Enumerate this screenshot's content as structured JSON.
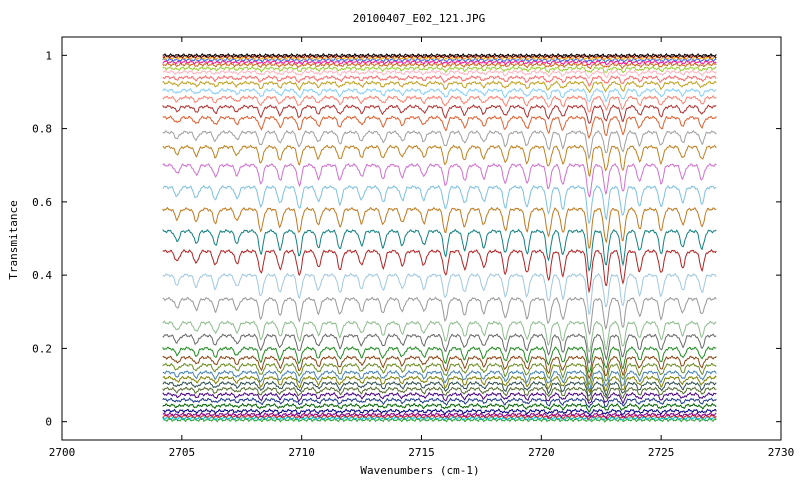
{
  "chart_data": {
    "type": "line",
    "title": "20100407_E02_121.JPG",
    "xlabel": "Wavenumbers (cm-1)",
    "ylabel": "Transmitance",
    "xlim": [
      2700,
      2730
    ],
    "ylim": [
      -0.05,
      1.05
    ],
    "data_x_range": [
      2704.2,
      2727.3
    ],
    "x_ticks": [
      "2700",
      "2705",
      "2710",
      "2715",
      "2720",
      "2725",
      "2730"
    ],
    "x_tick_values": [
      2700,
      2705,
      2710,
      2715,
      2720,
      2725,
      2730
    ],
    "y_ticks": [
      "0",
      "0.2",
      "0.4",
      "0.6",
      "0.8",
      "1"
    ],
    "y_tick_values": [
      0,
      0.2,
      0.4,
      0.6,
      0.8,
      1.0
    ],
    "grid": false,
    "legend": "none",
    "series_baselines": [
      0.005,
      0.01,
      0.015,
      0.02,
      0.03,
      0.045,
      0.06,
      0.075,
      0.09,
      0.105,
      0.12,
      0.135,
      0.155,
      0.175,
      0.2,
      0.235,
      0.27,
      0.335,
      0.4,
      0.465,
      0.52,
      0.58,
      0.64,
      0.7,
      0.75,
      0.79,
      0.83,
      0.86,
      0.885,
      0.905,
      0.925,
      0.94,
      0.955,
      0.965,
      0.975,
      0.982,
      0.988,
      0.993,
      0.997,
      1.0
    ],
    "absorption_lines": [
      {
        "x": 2704.8,
        "depth": 0.25
      },
      {
        "x": 2705.6,
        "depth": 0.3
      },
      {
        "x": 2706.4,
        "depth": 0.35
      },
      {
        "x": 2707.3,
        "depth": 0.3
      },
      {
        "x": 2708.3,
        "depth": 0.55
      },
      {
        "x": 2709.1,
        "depth": 0.45
      },
      {
        "x": 2709.9,
        "depth": 0.6
      },
      {
        "x": 2710.7,
        "depth": 0.4
      },
      {
        "x": 2711.6,
        "depth": 0.45
      },
      {
        "x": 2712.5,
        "depth": 0.35
      },
      {
        "x": 2713.4,
        "depth": 0.4
      },
      {
        "x": 2714.2,
        "depth": 0.35
      },
      {
        "x": 2715.1,
        "depth": 0.35
      },
      {
        "x": 2716.0,
        "depth": 0.6
      },
      {
        "x": 2716.8,
        "depth": 0.45
      },
      {
        "x": 2717.6,
        "depth": 0.4
      },
      {
        "x": 2718.5,
        "depth": 0.55
      },
      {
        "x": 2719.4,
        "depth": 0.55
      },
      {
        "x": 2720.3,
        "depth": 0.7
      },
      {
        "x": 2720.9,
        "depth": 0.6
      },
      {
        "x": 2722.0,
        "depth": 1.0
      },
      {
        "x": 2722.7,
        "depth": 0.85
      },
      {
        "x": 2723.4,
        "depth": 0.8
      },
      {
        "x": 2724.1,
        "depth": 0.5
      },
      {
        "x": 2725.0,
        "depth": 0.55
      },
      {
        "x": 2725.9,
        "depth": 0.4
      },
      {
        "x": 2726.7,
        "depth": 0.45
      }
    ],
    "series_colors": [
      "#2ca02c",
      "#00bcd4",
      "#d62728",
      "#8b008b",
      "#000080",
      "#006400",
      "#1e3a8a",
      "#4b0082",
      "#556b2f",
      "#2f4f4f",
      "#808000",
      "#4682b4",
      "#6b8e23",
      "#8b4513",
      "#228b22",
      "#696969",
      "#8fbc8f",
      "#999999",
      "#a0c8e0",
      "#b22222",
      "#138080",
      "#c07820",
      "#7ec0e0",
      "#d070d0",
      "#c08020",
      "#a0a0a0",
      "#e06030",
      "#b03030",
      "#ff8070",
      "#87cefa",
      "#c0a020",
      "#ff6a6a",
      "#ffb6c1",
      "#9acd32",
      "#d2691e",
      "#ff1493",
      "#4169e1",
      "#ffa500",
      "#8b0000",
      "#000000"
    ]
  }
}
